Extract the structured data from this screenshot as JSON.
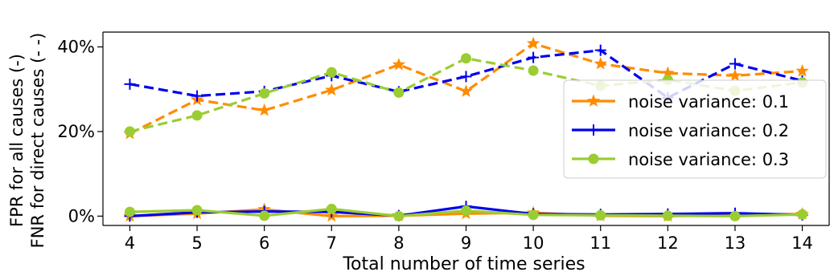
{
  "chart_data": {
    "type": "line",
    "xlabel": "Total number of time series",
    "ylabel_lines": [
      "FPR for all causes (-)",
      "FNR for direct causes (- -)"
    ],
    "x": [
      4,
      5,
      6,
      7,
      8,
      9,
      10,
      11,
      12,
      13,
      14
    ],
    "xlim": [
      3.6,
      14.4
    ],
    "ylim": [
      -2.2,
      43.5
    ],
    "yticks": [
      0,
      20,
      40
    ],
    "ytick_labels": [
      "0%",
      "20%",
      "40%"
    ],
    "xtick_labels": [
      "4",
      "5",
      "6",
      "7",
      "8",
      "9",
      "10",
      "11",
      "12",
      "13",
      "14"
    ],
    "grid": false,
    "legend_position": "right",
    "series": [
      {
        "name": "noise variance: 0.1",
        "color": "#ff8c00",
        "marker": "star",
        "fpr": [
          0.0,
          0.6,
          1.6,
          0.0,
          0.1,
          0.6,
          0.8,
          0.1,
          0.0,
          0.3,
          0.5
        ],
        "fnr": [
          19.5,
          27.5,
          25.0,
          29.8,
          35.8,
          29.5,
          40.8,
          36.0,
          33.8,
          33.2,
          34.3
        ]
      },
      {
        "name": "noise variance: 0.2",
        "color": "#0000ee",
        "marker": "plus",
        "fpr": [
          0.0,
          0.9,
          1.1,
          1.0,
          0.1,
          2.3,
          0.5,
          0.4,
          0.5,
          0.7,
          0.3
        ],
        "fnr": [
          31.2,
          28.4,
          29.5,
          33.2,
          29.4,
          33.0,
          37.5,
          39.2,
          28.0,
          36.0,
          32.0
        ]
      },
      {
        "name": "noise variance: 0.3",
        "color": "#9acd32",
        "marker": "circle",
        "fpr": [
          1.0,
          1.4,
          0.1,
          1.7,
          0.0,
          1.3,
          0.3,
          0.2,
          0.1,
          0.0,
          0.4
        ],
        "fnr": [
          20.0,
          23.8,
          29.0,
          34.0,
          29.2,
          37.3,
          34.4,
          30.8,
          32.2,
          29.6,
          31.6
        ]
      }
    ]
  }
}
